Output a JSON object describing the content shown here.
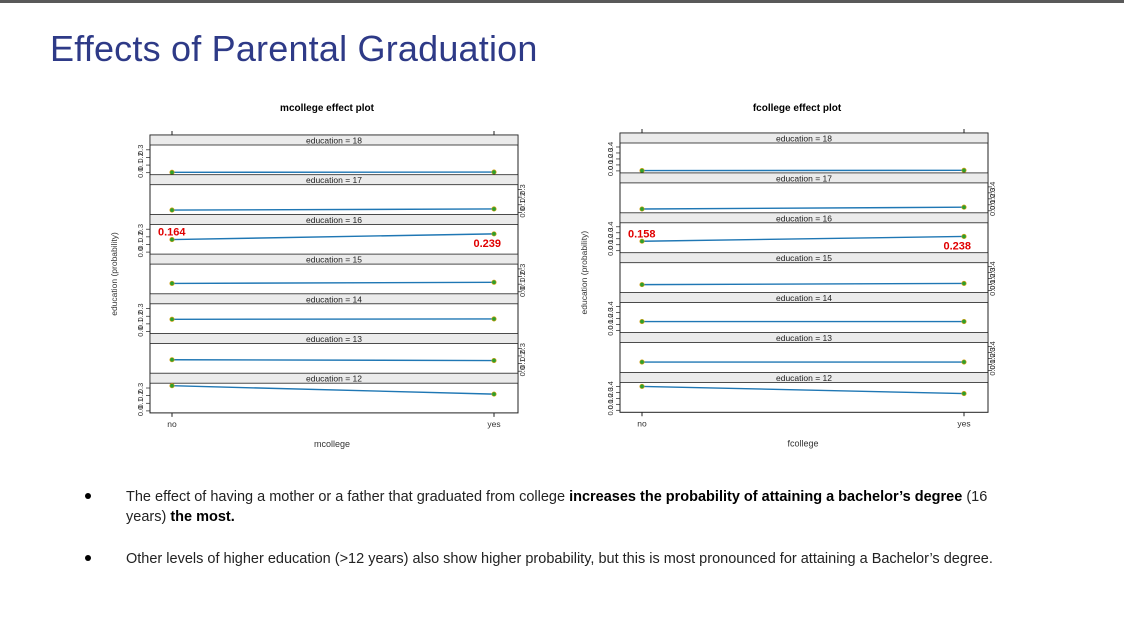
{
  "slide": {
    "title": "Effects of Parental Graduation",
    "bullets": [
      {
        "parts": [
          {
            "text": "The effect of having a mother or a father that graduated from college ",
            "bold": false
          },
          {
            "text": "increases the probability of attaining a bachelor’s degree",
            "bold": true
          },
          {
            "text": " (16 years) ",
            "bold": false
          },
          {
            "text": "the most.",
            "bold": true
          }
        ]
      },
      {
        "parts": [
          {
            "text": "Other levels of higher education (>12 years) also show higher probability, but this is most pronounced for attaining a Bachelor’s degree.",
            "bold": false
          }
        ]
      }
    ]
  },
  "colors": {
    "line": "#1f77b4",
    "annotation": "#e00000",
    "strip_bg": "#ebebeb",
    "title": "#2e3a87"
  },
  "chart_data": [
    {
      "type": "line",
      "title": "mcollege effect plot",
      "xlabel": "mcollege",
      "ylabel": "education (probability)",
      "categories": [
        "no",
        "yes"
      ],
      "panels": [
        {
          "label": "education = 18",
          "values": [
            0.005,
            0.008
          ],
          "ylim": [
            0,
            0.35
          ],
          "ticks": [
            "0.0",
            "0.1",
            "0.2",
            "0.3"
          ],
          "tick_side": "left"
        },
        {
          "label": "education = 17",
          "values": [
            0.03,
            0.045
          ],
          "ylim": [
            0,
            0.35
          ],
          "ticks": [
            "0.0",
            "0.1",
            "0.2",
            "0.3"
          ],
          "tick_side": "right"
        },
        {
          "label": "education = 16",
          "values": [
            0.164,
            0.239
          ],
          "ylim": [
            0,
            0.35
          ],
          "ticks": [
            "0.0",
            "0.1",
            "0.2",
            "0.3"
          ],
          "tick_side": "left",
          "annotations": [
            "0.164",
            "0.239"
          ]
        },
        {
          "label": "education = 15",
          "values": [
            0.11,
            0.125
          ],
          "ylim": [
            0,
            0.35
          ],
          "ticks": [
            "0.0",
            "0.1",
            "0.2",
            "0.3"
          ],
          "tick_side": "right"
        },
        {
          "label": "education = 14",
          "values": [
            0.16,
            0.165
          ],
          "ylim": [
            0,
            0.35
          ],
          "ticks": [
            "0.0",
            "0.1",
            "0.2",
            "0.3"
          ],
          "tick_side": "left"
        },
        {
          "label": "education = 13",
          "values": [
            0.15,
            0.14
          ],
          "ylim": [
            0,
            0.35
          ],
          "ticks": [
            "0.0",
            "0.1",
            "0.2",
            "0.3"
          ],
          "tick_side": "right"
        },
        {
          "label": "education = 12",
          "values": [
            0.33,
            0.22
          ],
          "ylim": [
            0,
            0.35
          ],
          "ticks": [
            "0.0",
            "0.1",
            "0.2",
            "0.3"
          ],
          "tick_side": "left"
        }
      ]
    },
    {
      "type": "line",
      "title": "fcollege effect plot",
      "xlabel": "fcollege",
      "ylabel": "education (probability)",
      "categories": [
        "no",
        "yes"
      ],
      "panels": [
        {
          "label": "education = 18",
          "values": [
            0.005,
            0.01
          ],
          "ylim": [
            0,
            0.45
          ],
          "ticks": [
            "0.0",
            "0.1",
            "0.2",
            "0.3",
            "0.4"
          ],
          "tick_side": "left"
        },
        {
          "label": "education = 17",
          "values": [
            0.03,
            0.06
          ],
          "ylim": [
            0,
            0.45
          ],
          "ticks": [
            "0.0",
            "0.1",
            "0.2",
            "0.3",
            "0.4"
          ],
          "tick_side": "right"
        },
        {
          "label": "education = 16",
          "values": [
            0.158,
            0.238
          ],
          "ylim": [
            0,
            0.45
          ],
          "ticks": [
            "0.0",
            "0.1",
            "0.2",
            "0.3",
            "0.4"
          ],
          "tick_side": "left",
          "annotations": [
            "0.158",
            "0.238"
          ]
        },
        {
          "label": "education = 15",
          "values": [
            0.1,
            0.12
          ],
          "ylim": [
            0,
            0.45
          ],
          "ticks": [
            "0.0",
            "0.1",
            "0.2",
            "0.3",
            "0.4"
          ],
          "tick_side": "right"
        },
        {
          "label": "education = 14",
          "values": [
            0.15,
            0.15
          ],
          "ylim": [
            0,
            0.45
          ],
          "ticks": [
            "0.0",
            "0.1",
            "0.2",
            "0.3",
            "0.4"
          ],
          "tick_side": "left"
        },
        {
          "label": "education = 13",
          "values": [
            0.14,
            0.14
          ],
          "ylim": [
            0,
            0.45
          ],
          "ticks": [
            "0.0",
            "0.1",
            "0.2",
            "0.3",
            "0.4"
          ],
          "tick_side": "right"
        },
        {
          "label": "education = 12",
          "values": [
            0.4,
            0.28
          ],
          "ylim": [
            0,
            0.45
          ],
          "ticks": [
            "0.0",
            "0.1",
            "0.2",
            "0.3",
            "0.4"
          ],
          "tick_side": "left"
        }
      ]
    }
  ]
}
